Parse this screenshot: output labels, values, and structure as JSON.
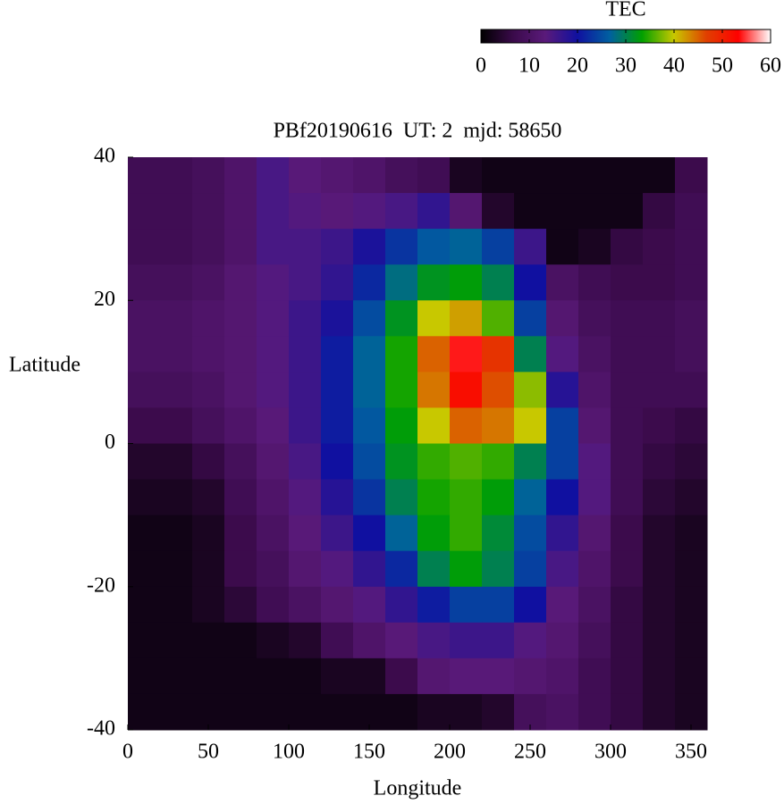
{
  "chart_data": {
    "type": "heatmap",
    "title": "PBf20190616  UT: 2  mjd: 58650",
    "xlabel": "Longitude",
    "ylabel": "Latitude",
    "colorbar_label": "TEC",
    "x": [
      10,
      30,
      50,
      70,
      90,
      110,
      130,
      150,
      170,
      190,
      210,
      230,
      250,
      270,
      290,
      310,
      330,
      350
    ],
    "y": [
      37.5,
      32.5,
      27.5,
      22.5,
      17.5,
      12.5,
      7.5,
      2.5,
      -2.5,
      -7.5,
      -12.5,
      -17.5,
      -22.5,
      -27.5,
      -32.5,
      -37.5
    ],
    "z": [
      [
        8,
        8,
        9,
        11,
        15,
        13,
        12,
        11,
        9,
        8,
        3,
        2,
        2,
        2,
        2,
        2,
        2,
        7
      ],
      [
        8,
        8,
        9,
        11,
        15,
        14,
        13,
        14,
        15,
        17,
        12,
        4,
        2,
        2,
        2,
        2,
        6,
        8
      ],
      [
        8,
        8,
        9,
        11,
        15,
        15,
        16,
        19,
        23,
        26,
        27,
        24,
        16,
        2,
        3,
        6,
        7,
        8
      ],
      [
        9,
        9,
        10,
        12,
        14,
        15,
        17,
        22,
        28,
        32,
        33,
        30,
        20,
        10,
        8,
        7,
        7,
        8
      ],
      [
        10,
        10,
        11,
        12,
        14,
        16,
        19,
        25,
        32,
        40,
        42,
        36,
        24,
        12,
        9,
        8,
        8,
        9
      ],
      [
        10,
        10,
        11,
        12,
        14,
        16,
        21,
        27,
        34,
        45,
        54,
        48,
        30,
        14,
        10,
        8,
        8,
        9
      ],
      [
        9,
        9,
        10,
        12,
        14,
        16,
        21,
        27,
        34,
        44,
        52,
        46,
        38,
        18,
        11,
        8,
        8,
        8
      ],
      [
        7,
        7,
        9,
        11,
        13,
        16,
        21,
        26,
        33,
        40,
        45,
        44,
        40,
        24,
        12,
        8,
        7,
        6
      ],
      [
        4,
        4,
        6,
        9,
        12,
        15,
        20,
        25,
        32,
        35,
        36,
        35,
        30,
        24,
        14,
        8,
        6,
        5
      ],
      [
        3,
        3,
        4,
        8,
        11,
        14,
        18,
        23,
        30,
        34,
        35,
        33,
        27,
        20,
        14,
        8,
        5,
        4
      ],
      [
        2,
        2,
        3,
        7,
        10,
        13,
        16,
        20,
        27,
        33,
        35,
        31,
        25,
        17,
        12,
        7,
        4,
        3
      ],
      [
        2,
        2,
        3,
        7,
        9,
        12,
        14,
        17,
        22,
        30,
        33,
        30,
        24,
        15,
        11,
        7,
        4,
        3
      ],
      [
        2,
        2,
        3,
        5,
        8,
        10,
        12,
        14,
        17,
        21,
        24,
        24,
        20,
        13,
        10,
        6,
        4,
        3
      ],
      [
        2,
        2,
        2,
        2,
        3,
        4,
        8,
        11,
        13,
        15,
        16,
        16,
        14,
        12,
        9,
        6,
        4,
        3
      ],
      [
        2,
        2,
        2,
        2,
        2,
        2,
        3,
        3,
        7,
        12,
        13,
        13,
        12,
        11,
        8,
        6,
        4,
        3
      ],
      [
        2,
        2,
        2,
        2,
        2,
        2,
        2,
        2,
        2,
        3,
        3,
        4,
        9,
        10,
        8,
        6,
        4,
        3
      ]
    ],
    "xlim": [
      0,
      360
    ],
    "xticks": [
      0,
      50,
      100,
      150,
      200,
      250,
      300,
      350
    ],
    "ylim": [
      -40,
      40
    ],
    "yticks": [
      -40,
      -20,
      0,
      20,
      40
    ],
    "zlim": [
      0,
      60
    ],
    "zticks": [
      0,
      10,
      20,
      30,
      40,
      50,
      60
    ],
    "colormap": [
      "#000000",
      "#3a0a4a",
      "#5a1a7a",
      "#1010a0",
      "#0060a0",
      "#00a000",
      "#c8c800",
      "#e04000",
      "#ff0000",
      "#ffffff"
    ]
  }
}
